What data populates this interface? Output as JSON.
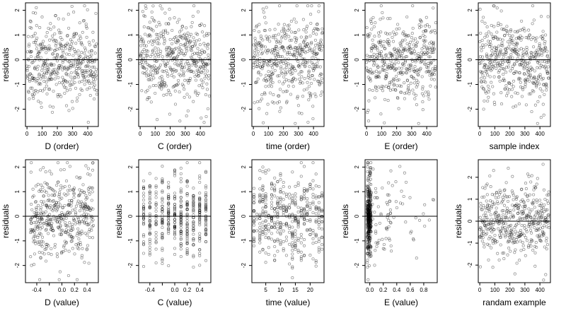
{
  "figure": {
    "ylabel": "residuals"
  },
  "chart_data": [
    {
      "type": "scatter",
      "xlabel": "D (order)",
      "ylabel": "residuals",
      "xlim": [
        -10,
        470
      ],
      "ylim": [
        -2.7,
        2.3
      ],
      "xticks": [
        0,
        100,
        200,
        300,
        400
      ],
      "yticks": [
        -2,
        -1,
        0,
        1,
        2
      ],
      "hline": 0,
      "kind": "order",
      "n": 450,
      "seed": 11
    },
    {
      "type": "scatter",
      "xlabel": "C (order)",
      "ylabel": "residuals",
      "xlim": [
        -10,
        470
      ],
      "ylim": [
        -2.7,
        2.3
      ],
      "xticks": [
        0,
        100,
        200,
        300,
        400
      ],
      "yticks": [
        -2,
        -1,
        0,
        1,
        2
      ],
      "hline": 0,
      "kind": "order",
      "n": 450,
      "seed": 22
    },
    {
      "type": "scatter",
      "xlabel": "time (order)",
      "ylabel": "residuals",
      "xlim": [
        -10,
        470
      ],
      "ylim": [
        -2.7,
        2.3
      ],
      "xticks": [
        0,
        100,
        200,
        300,
        400
      ],
      "yticks": [
        -2,
        -1,
        0,
        1,
        2
      ],
      "hline": 0,
      "kind": "order",
      "n": 450,
      "seed": 33
    },
    {
      "type": "scatter",
      "xlabel": "E (order)",
      "ylabel": "residuals",
      "xlim": [
        -10,
        470
      ],
      "ylim": [
        -2.7,
        2.3
      ],
      "xticks": [
        0,
        100,
        200,
        300,
        400
      ],
      "yticks": [
        -2,
        -1,
        0,
        1,
        2
      ],
      "hline": 0,
      "kind": "order",
      "n": 450,
      "seed": 44
    },
    {
      "type": "scatter",
      "xlabel": "sample index",
      "ylabel": "residuals",
      "xlim": [
        -10,
        470
      ],
      "ylim": [
        -2.7,
        2.3
      ],
      "xticks": [
        0,
        100,
        200,
        300,
        400
      ],
      "yticks": [
        -2,
        -1,
        0,
        1,
        2
      ],
      "hline": 0,
      "kind": "order",
      "n": 450,
      "seed": 55
    },
    {
      "type": "scatter",
      "xlabel": "D (value)",
      "ylabel": "residuals",
      "xlim": [
        -0.58,
        0.58
      ],
      "ylim": [
        -2.7,
        2.3
      ],
      "xticks": [
        -0.4,
        -0.2,
        0.0,
        0.2,
        0.4
      ],
      "xtick_labels": [
        "-0.4",
        "",
        "0.0",
        "0.2",
        "0.4"
      ],
      "yticks": [
        -2,
        -1,
        0,
        1,
        2
      ],
      "hline": 0,
      "kind": "uniform",
      "n": 450,
      "seed": 66
    },
    {
      "type": "scatter",
      "xlabel": "C (value)",
      "ylabel": "residuals",
      "xlim": [
        -0.58,
        0.58
      ],
      "ylim": [
        -2.7,
        2.3
      ],
      "xticks": [
        -0.4,
        -0.2,
        0.0,
        0.2,
        0.4
      ],
      "xtick_labels": [
        "-0.4",
        "",
        "0.0",
        "0.2",
        "0.4"
      ],
      "yticks": [
        -2,
        -1,
        0,
        1,
        2
      ],
      "hline": 0,
      "kind": "discrete",
      "levels": [
        -0.5,
        -0.4,
        -0.3,
        -0.2,
        -0.1,
        0.0,
        0.1,
        0.2,
        0.3,
        0.4,
        0.5
      ],
      "n": 450,
      "seed": 77
    },
    {
      "type": "scatter",
      "xlabel": "time (value)",
      "ylabel": "residuals",
      "xlim": [
        0.3,
        24.7
      ],
      "ylim": [
        -2.7,
        2.3
      ],
      "xticks": [
        5,
        10,
        15,
        20
      ],
      "yticks": [
        -2,
        -1,
        0,
        1,
        2
      ],
      "hline": 0,
      "kind": "discrete",
      "levels": [
        1,
        2,
        3,
        4,
        5,
        6,
        7,
        8,
        9,
        10,
        11,
        12,
        13,
        14,
        15,
        16,
        17,
        18,
        19,
        20,
        21,
        22,
        23,
        24
      ],
      "n": 450,
      "seed": 88
    },
    {
      "type": "scatter",
      "xlabel": "E (value)",
      "ylabel": "residuals",
      "xlim": [
        -0.07,
        1.0
      ],
      "ylim": [
        -2.7,
        2.3
      ],
      "xticks": [
        0.0,
        0.2,
        0.4,
        0.6,
        0.8
      ],
      "xtick_labels": [
        "0.0",
        "0.2",
        "0.4",
        "0.6",
        "0.8"
      ],
      "yticks": [
        -2,
        -1,
        0,
        1,
        2
      ],
      "hline": 0,
      "kind": "skewed",
      "n": 450,
      "seed": 99
    },
    {
      "type": "scatter",
      "xlabel": "randam example",
      "ylabel": "residuals",
      "xlim": [
        -10,
        470
      ],
      "ylim": [
        -2.8,
        2.8
      ],
      "xticks": [
        0,
        100,
        200,
        300,
        400
      ],
      "yticks": [
        -2,
        -1,
        0,
        1,
        2
      ],
      "hline": 0,
      "kind": "order",
      "n": 450,
      "seed": 111
    }
  ]
}
